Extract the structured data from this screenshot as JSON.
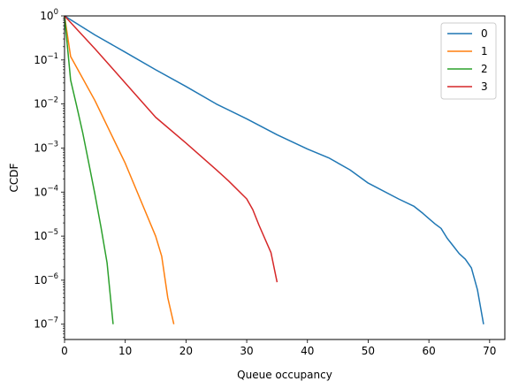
{
  "chart_data": {
    "type": "line",
    "title": "",
    "xlabel": "Queue occupancy",
    "ylabel": "CCDF",
    "xlim": [
      0,
      72.5
    ],
    "ylim": [
      4.5e-08,
      1.0
    ],
    "yscale": "log",
    "grid": false,
    "legend": "top-right",
    "x_ticks": [
      0,
      10,
      20,
      30,
      40,
      50,
      60,
      70
    ],
    "y_ticks": [
      {
        "value": 1e-07,
        "base": "10",
        "exp": "−7"
      },
      {
        "value": 1e-06,
        "base": "10",
        "exp": "−6"
      },
      {
        "value": 1e-05,
        "base": "10",
        "exp": "−5"
      },
      {
        "value": 0.0001,
        "base": "10",
        "exp": "−4"
      },
      {
        "value": 0.001,
        "base": "10",
        "exp": "−3"
      },
      {
        "value": 0.01,
        "base": "10",
        "exp": "−2"
      },
      {
        "value": 0.1,
        "base": "10",
        "exp": "−1"
      },
      {
        "value": 1,
        "base": "10",
        "exp": "0"
      }
    ],
    "series": [
      {
        "name": "0",
        "color": "#1f77b4",
        "x": [
          0,
          5,
          10,
          15,
          20,
          25,
          30,
          35,
          40,
          43.5,
          47,
          50,
          55,
          57.5,
          59,
          60,
          61,
          62,
          63,
          64,
          65,
          66,
          67,
          68,
          69
        ],
        "y": [
          1.0,
          0.37,
          0.15,
          0.06,
          0.025,
          0.01,
          0.0046,
          0.002,
          0.00095,
          0.0006,
          0.00032,
          0.00016,
          7e-05,
          4.8e-05,
          3.3e-05,
          2.5e-05,
          1.9e-05,
          1.5e-05,
          9e-06,
          6e-06,
          4e-06,
          3e-06,
          1.9e-06,
          6e-07,
          1e-07
        ]
      },
      {
        "name": "1",
        "color": "#ff7f0e",
        "x": [
          0,
          1,
          5,
          10,
          15,
          16,
          17,
          18
        ],
        "y": [
          1.0,
          0.12,
          0.012,
          0.00045,
          1e-05,
          3.5e-06,
          4e-07,
          1e-07
        ]
      },
      {
        "name": "2",
        "color": "#2ca02c",
        "x": [
          0,
          1,
          2,
          3,
          4,
          5,
          6,
          7,
          8
        ],
        "y": [
          1.0,
          0.035,
          0.009,
          0.0022,
          0.00045,
          9e-05,
          1.6e-05,
          2.5e-06,
          1e-07
        ]
      },
      {
        "name": "3",
        "color": "#d62728",
        "x": [
          0,
          5,
          10,
          15,
          20,
          25,
          27,
          30,
          31,
          32,
          34,
          35
        ],
        "y": [
          1.0,
          0.18,
          0.03,
          0.005,
          0.0013,
          0.00032,
          0.00018,
          7e-05,
          4e-05,
          1.8e-05,
          4.2e-06,
          9e-07
        ]
      }
    ]
  }
}
